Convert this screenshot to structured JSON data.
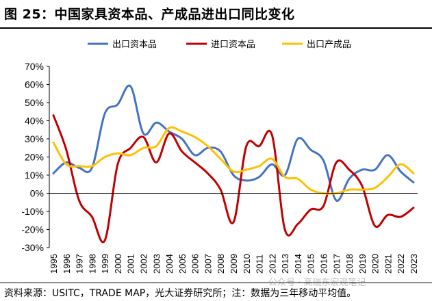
{
  "title": "图 25：中国家具资本品、产成品进出口同比变化",
  "source": "资料来源：USITC，TRADE MAP，光大证券研究所；注：数据为三年移动平均值。",
  "watermark": "公众号 · 高瑞东宏观笔记",
  "chart_data": {
    "type": "line",
    "title": "",
    "xlabel": "",
    "ylabel": "",
    "ylim": [
      -30,
      70
    ],
    "yticks": [
      -30,
      -20,
      -10,
      0,
      10,
      20,
      30,
      40,
      50,
      60,
      70
    ],
    "ytick_labels": [
      "-30%",
      "-20%",
      "-10%",
      "0%",
      "10%",
      "20%",
      "30%",
      "40%",
      "50%",
      "60%",
      "70%"
    ],
    "categories": [
      "1995",
      "1996",
      "1997",
      "1998",
      "1999",
      "2000",
      "2001",
      "2002",
      "2003",
      "2004",
      "2005",
      "2006",
      "2007",
      "2008",
      "2009",
      "2010",
      "2011",
      "2012",
      "2013",
      "2014",
      "2015",
      "2016",
      "2017",
      "2018",
      "2019",
      "2020",
      "2021",
      "2022",
      "2023"
    ],
    "legend_position": "top",
    "series": [
      {
        "name": "出口资本品",
        "color": "#4472C4",
        "values": [
          11,
          17,
          14,
          14,
          44,
          49,
          59,
          33,
          39,
          34,
          30,
          21,
          25,
          23,
          10,
          7,
          9,
          16,
          10,
          30,
          24,
          18,
          -4,
          8,
          13,
          13,
          21,
          12,
          6
        ]
      },
      {
        "name": "进口资本品",
        "color": "#C00000",
        "values": [
          43,
          24,
          -4,
          -13,
          -26,
          16,
          25,
          31,
          17,
          33,
          23,
          17,
          11,
          2,
          -16,
          26,
          26,
          32,
          -20,
          -17,
          -9,
          -7,
          17,
          13,
          4,
          -18,
          -12,
          -13,
          -8
        ]
      },
      {
        "name": "出口产成品",
        "color": "#FFC000",
        "values": [
          28,
          16,
          15,
          15,
          20,
          22,
          21,
          25,
          26,
          36,
          34,
          31,
          26,
          19,
          12,
          13,
          15,
          19,
          9,
          8,
          2,
          0,
          0,
          2,
          2,
          3,
          9,
          16,
          11
        ]
      }
    ]
  }
}
